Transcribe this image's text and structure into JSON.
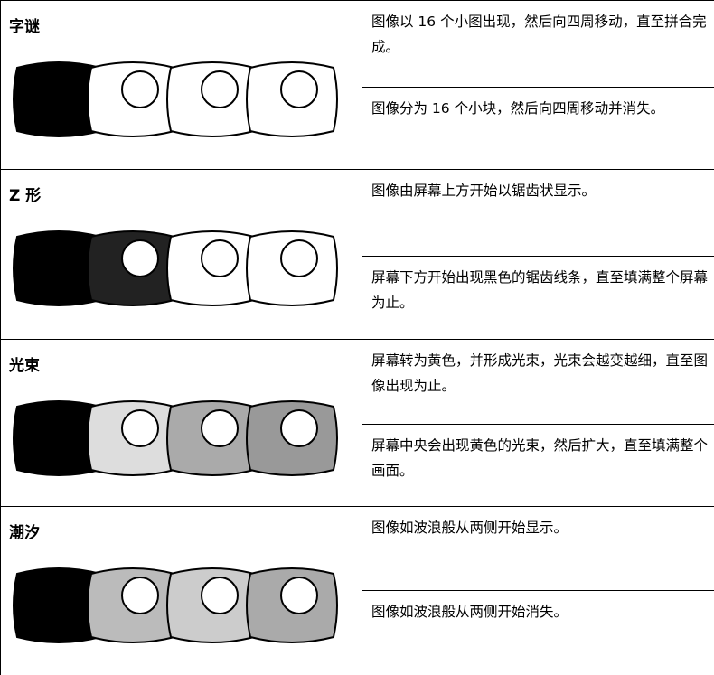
{
  "rows": [
    {
      "title": "字谜",
      "descriptions": [
        "图像以 16 个小图出现，然后向四周移动，直至拼合完成。",
        "图像分为 16 个小块，然后向四周移动并消失。"
      ]
    },
    {
      "title": "Z 形",
      "descriptions": [
        "图像由屏幕上方开始以锯齿状显示。",
        "屏幕下方开始出现黑色的锯齿线条，直至填满整个屏幕为止。"
      ]
    },
    {
      "title": "光束",
      "descriptions": [
        "屏幕转为黄色，并形成光束，光束会越变越细，直至图像出现为止。",
        "屏幕中央会出现黄色的光束，然后扩大，直至填满整个画面。"
      ]
    },
    {
      "title": "潮汐",
      "descriptions": [
        "图像如波浪般从两侧开始显示。",
        "图像如波浪般从两侧开始消失。"
      ]
    }
  ]
}
